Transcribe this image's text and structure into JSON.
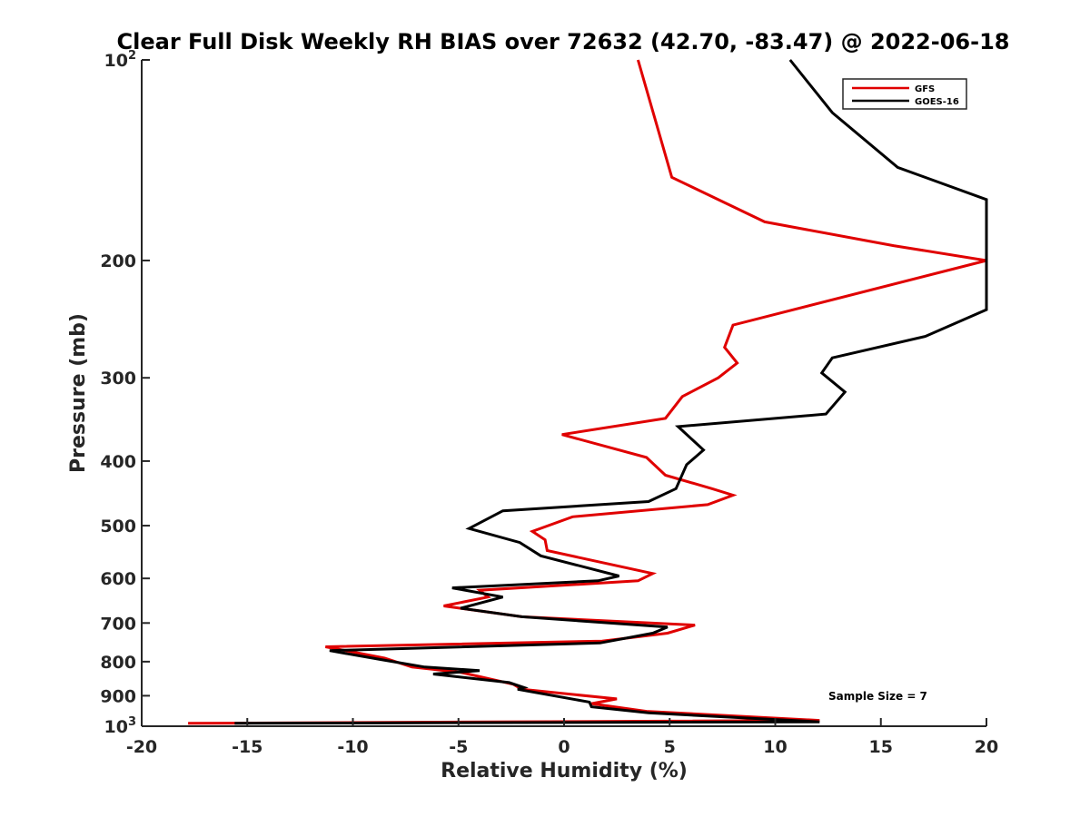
{
  "chart_data": {
    "type": "line",
    "title": "Clear Full Disk Weekly RH BIAS over 72632 (42.70, -83.47) @ 2022-06-18",
    "xlabel": "Relative Humidity (%)",
    "ylabel": "Pressure (mb)",
    "xlim": [
      -20,
      20
    ],
    "ylim": [
      100,
      1000
    ],
    "y_scale": "log",
    "y_reversed": true,
    "x_ticks": [
      "-20",
      "-15",
      "-10",
      "-5",
      "0",
      "5",
      "10",
      "15",
      "20"
    ],
    "y_ticks": [
      {
        "value": 100,
        "base": "10",
        "exp": "2"
      },
      {
        "value": 200,
        "label": "200"
      },
      {
        "value": 300,
        "label": "300"
      },
      {
        "value": 400,
        "label": "400"
      },
      {
        "value": 500,
        "label": "500"
      },
      {
        "value": 600,
        "label": "600"
      },
      {
        "value": 700,
        "label": "700"
      },
      {
        "value": 800,
        "label": "800"
      },
      {
        "value": 900,
        "label": "900"
      },
      {
        "value": 1000,
        "base": "10",
        "exp": "3"
      }
    ],
    "grid": false,
    "legend_position": "top-right",
    "series": [
      {
        "name": "GFS",
        "color": "#e00000",
        "points": [
          [
            3.5,
            100
          ],
          [
            5.1,
            150
          ],
          [
            9.5,
            175
          ],
          [
            15.6,
            190
          ],
          [
            20.0,
            200
          ],
          [
            8.0,
            250
          ],
          [
            7.6,
            270
          ],
          [
            8.2,
            285
          ],
          [
            7.3,
            300
          ],
          [
            5.6,
            320
          ],
          [
            4.8,
            345
          ],
          [
            -0.1,
            365
          ],
          [
            3.9,
            395
          ],
          [
            4.8,
            420
          ],
          [
            7.0,
            440
          ],
          [
            8.0,
            450
          ],
          [
            6.8,
            465
          ],
          [
            0.4,
            485
          ],
          [
            -1.5,
            510
          ],
          [
            -0.9,
            525
          ],
          [
            -0.8,
            545
          ],
          [
            4.2,
            590
          ],
          [
            3.5,
            605
          ],
          [
            -4.0,
            625
          ],
          [
            -3.6,
            640
          ],
          [
            -5.7,
            660
          ],
          [
            -2.0,
            685
          ],
          [
            6.2,
            705
          ],
          [
            4.9,
            725
          ],
          [
            1.8,
            745
          ],
          [
            -11.3,
            760
          ],
          [
            -8.5,
            790
          ],
          [
            -7.2,
            815
          ],
          [
            -4.9,
            830
          ],
          [
            -2.4,
            865
          ],
          [
            -2.0,
            880
          ],
          [
            2.5,
            910
          ],
          [
            1.3,
            925
          ],
          [
            3.9,
            950
          ],
          [
            12.1,
            980
          ],
          [
            -17.8,
            990
          ]
        ]
      },
      {
        "name": "GOES-16",
        "color": "#000000",
        "points": [
          [
            10.7,
            100
          ],
          [
            12.7,
            120
          ],
          [
            15.8,
            145
          ],
          [
            20.0,
            162
          ],
          [
            20.0,
            237
          ],
          [
            17.1,
            260
          ],
          [
            12.7,
            280
          ],
          [
            12.2,
            295
          ],
          [
            13.3,
            315
          ],
          [
            12.4,
            340
          ],
          [
            5.4,
            355
          ],
          [
            6.6,
            385
          ],
          [
            5.8,
            405
          ],
          [
            5.3,
            440
          ],
          [
            4.0,
            460
          ],
          [
            -2.9,
            475
          ],
          [
            -4.5,
            505
          ],
          [
            -2.1,
            530
          ],
          [
            -1.1,
            555
          ],
          [
            2.6,
            595
          ],
          [
            1.6,
            605
          ],
          [
            -5.3,
            620
          ],
          [
            -2.9,
            640
          ],
          [
            -4.9,
            665
          ],
          [
            -2.0,
            685
          ],
          [
            4.9,
            710
          ],
          [
            4.2,
            725
          ],
          [
            1.7,
            750
          ],
          [
            -11.1,
            770
          ],
          [
            -8.6,
            795
          ],
          [
            -6.6,
            815
          ],
          [
            -4.0,
            825
          ],
          [
            -6.2,
            835
          ],
          [
            -2.6,
            860
          ],
          [
            -1.9,
            875
          ],
          [
            -2.2,
            880
          ],
          [
            1.2,
            920
          ],
          [
            1.3,
            935
          ],
          [
            4.0,
            955
          ],
          [
            12.1,
            985
          ],
          [
            -15.6,
            990
          ]
        ]
      }
    ],
    "annotation": "Sample Size = 7"
  }
}
